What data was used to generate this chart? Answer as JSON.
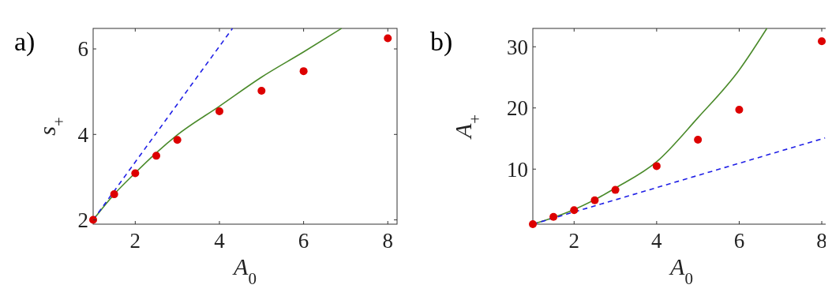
{
  "chart_data": [
    {
      "type": "scatter",
      "title": "a)",
      "xlabel": "A$_{0}$",
      "ylabel": "s$_{+}$",
      "xlim": [
        1,
        8.22
      ],
      "ylim": [
        1.9,
        6.48
      ],
      "xticks": [
        2,
        4,
        6,
        8
      ],
      "yticks": [
        2,
        4,
        6
      ],
      "series": [
        {
          "type": "line",
          "color": "#4a8a2a",
          "line_style": "solid",
          "marker": "none",
          "x": [
            1,
            1.5,
            2,
            2.5,
            3,
            4,
            5,
            6,
            6.9
          ],
          "values": [
            2,
            2.6,
            3.1,
            3.57,
            3.99,
            4.66,
            5.34,
            5.93,
            6.48
          ]
        },
        {
          "type": "line",
          "color": "#1f1fe6",
          "line_style": "dashed",
          "marker": "none",
          "x": [
            1,
            4.31
          ],
          "values": [
            2,
            6.48
          ]
        },
        {
          "color": "#dd0000",
          "marker": "circle",
          "x": [
            1,
            1.5,
            2,
            2.5,
            3,
            4,
            5,
            6,
            8
          ],
          "values": [
            2.0,
            2.6,
            3.09,
            3.5,
            3.87,
            4.54,
            5.02,
            5.48,
            6.25
          ]
        }
      ]
    },
    {
      "type": "scatter",
      "title": "b)",
      "xlabel": "A$_{0}$",
      "ylabel": "A$_{+}$",
      "xlim": [
        1,
        8.21
      ],
      "ylim": [
        1,
        33
      ],
      "xticks": [
        2,
        4,
        6,
        8
      ],
      "yticks": [
        10,
        20,
        30
      ],
      "series": [
        {
          "type": "line",
          "color": "#4a8a2a",
          "line_style": "solid",
          "marker": "none",
          "x": [
            1,
            1.5,
            2,
            2.5,
            3,
            4,
            5,
            6,
            6.67
          ],
          "values": [
            1,
            2.1,
            3.4,
            5.0,
            6.9,
            11.2,
            18.4,
            26.2,
            33
          ]
        },
        {
          "type": "line",
          "color": "#1f1fe6",
          "line_style": "dashed",
          "marker": "none",
          "x": [
            1,
            8.08
          ],
          "values": [
            1,
            15.1
          ]
        },
        {
          "color": "#dd0000",
          "marker": "circle",
          "x": [
            1,
            1.5,
            2,
            2.5,
            3,
            4,
            5,
            6,
            8
          ],
          "values": [
            1,
            2.2,
            3.3,
            4.9,
            6.6,
            10.5,
            14.8,
            19.7,
            30.9
          ]
        }
      ]
    }
  ]
}
